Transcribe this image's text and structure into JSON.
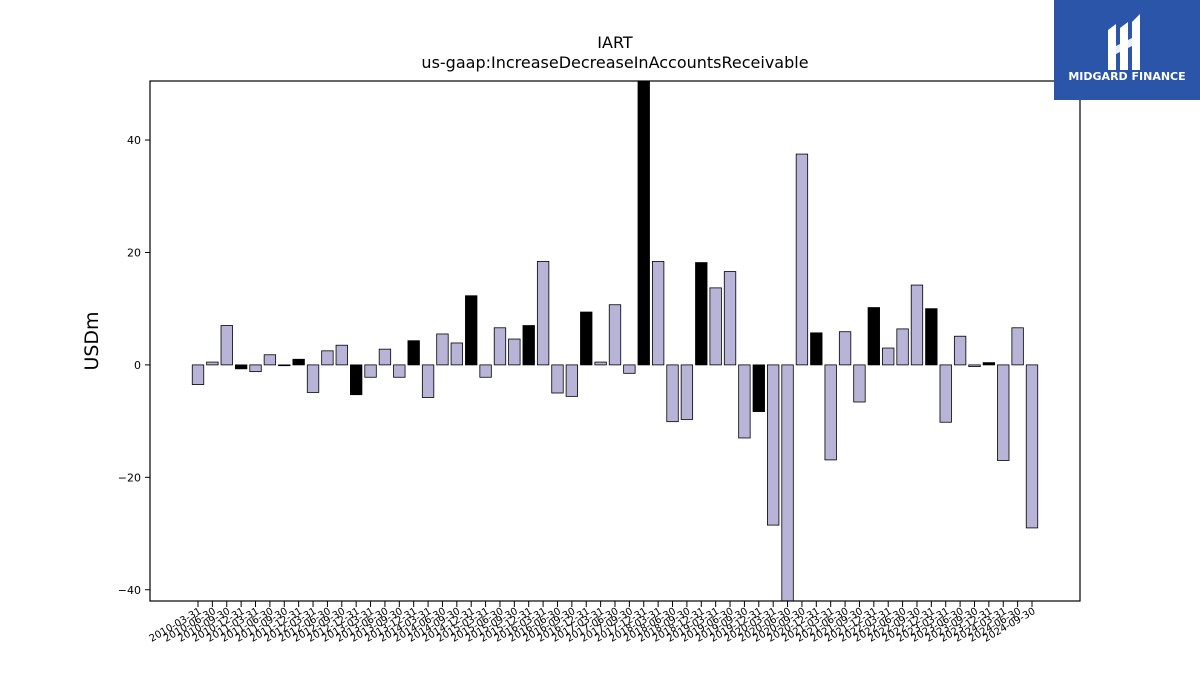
{
  "chart_data": {
    "type": "bar",
    "title": "IART",
    "subtitle": "us-gaap:IncreaseDecreaseInAccountsReceivable",
    "ylabel": "USDm",
    "xlabel": "",
    "ylim": [
      -42,
      50.5
    ],
    "yticks": [
      -40,
      -20,
      0,
      20,
      40
    ],
    "grid": false,
    "legend": "none",
    "colors": {
      "default": "#b8b4d8",
      "highlight": "#000000",
      "edge": "#000000"
    },
    "categories": [
      "2010-03-31",
      "2010-06-30",
      "2010-09-30",
      "2010-12-31",
      "2011-03-31",
      "2011-06-30",
      "2011-09-30",
      "2011-12-31",
      "2012-03-31",
      "2012-06-30",
      "2012-09-30",
      "2012-12-31",
      "2013-03-31",
      "2013-06-30",
      "2013-09-30",
      "2013-12-31",
      "2014-03-31",
      "2014-06-30",
      "2014-09-30",
      "2014-12-31",
      "2015-03-31",
      "2015-06-30",
      "2015-09-30",
      "2015-12-31",
      "2016-03-31",
      "2016-06-30",
      "2016-09-30",
      "2016-12-31",
      "2017-03-31",
      "2017-06-30",
      "2017-09-30",
      "2017-12-31",
      "2018-03-31",
      "2018-06-30",
      "2018-09-30",
      "2018-12-31",
      "2019-03-31",
      "2019-06-30",
      "2019-09-30",
      "2019-12-31",
      "2020-03-31",
      "2020-06-30",
      "2020-09-30",
      "2020-12-31",
      "2021-03-31",
      "2021-06-30",
      "2021-09-30",
      "2021-12-31",
      "2022-03-31",
      "2022-06-30",
      "2022-09-30",
      "2022-12-31",
      "2023-03-31",
      "2023-06-30",
      "2023-09-30",
      "2023-12-31",
      "2024-03-31",
      "2024-06-30",
      "2024-09-30"
    ],
    "series": [
      {
        "values": [
          -3.5,
          0.5,
          7,
          -0.7,
          -1.2,
          1.8,
          0,
          1,
          -4.9,
          2.5,
          3.5,
          -5.3,
          -2.2,
          2.8,
          -2.2,
          4.3,
          -5.8,
          5.5,
          3.9,
          12.3,
          -2.2,
          6.6,
          4.6,
          7,
          18.4,
          -5,
          -5.6,
          9.4,
          0.5,
          10.7,
          -1.5,
          51,
          18.4,
          -10.1,
          -9.7,
          18.2,
          13.7,
          16.6,
          -13,
          -8.3,
          -28.5,
          -42,
          37.5,
          5.7,
          -16.9,
          5.9,
          -6.6,
          10.2,
          3,
          6.4,
          14.2,
          10,
          -10.2,
          5.1,
          -0.3,
          0.4,
          -17,
          6.6,
          -29
        ]
      }
    ],
    "highlight": [
      false,
      false,
      false,
      true,
      false,
      false,
      false,
      true,
      false,
      false,
      false,
      true,
      false,
      false,
      false,
      true,
      false,
      false,
      false,
      true,
      false,
      false,
      false,
      true,
      false,
      false,
      false,
      true,
      false,
      false,
      false,
      true,
      false,
      false,
      false,
      true,
      false,
      false,
      false,
      true,
      false,
      false,
      false,
      true,
      false,
      false,
      false,
      true,
      false,
      false,
      false,
      true,
      false,
      false,
      false,
      true,
      false,
      false,
      false
    ]
  },
  "logo": {
    "text": "MIDGARD FINANCE",
    "background": "#2a55a8"
  }
}
